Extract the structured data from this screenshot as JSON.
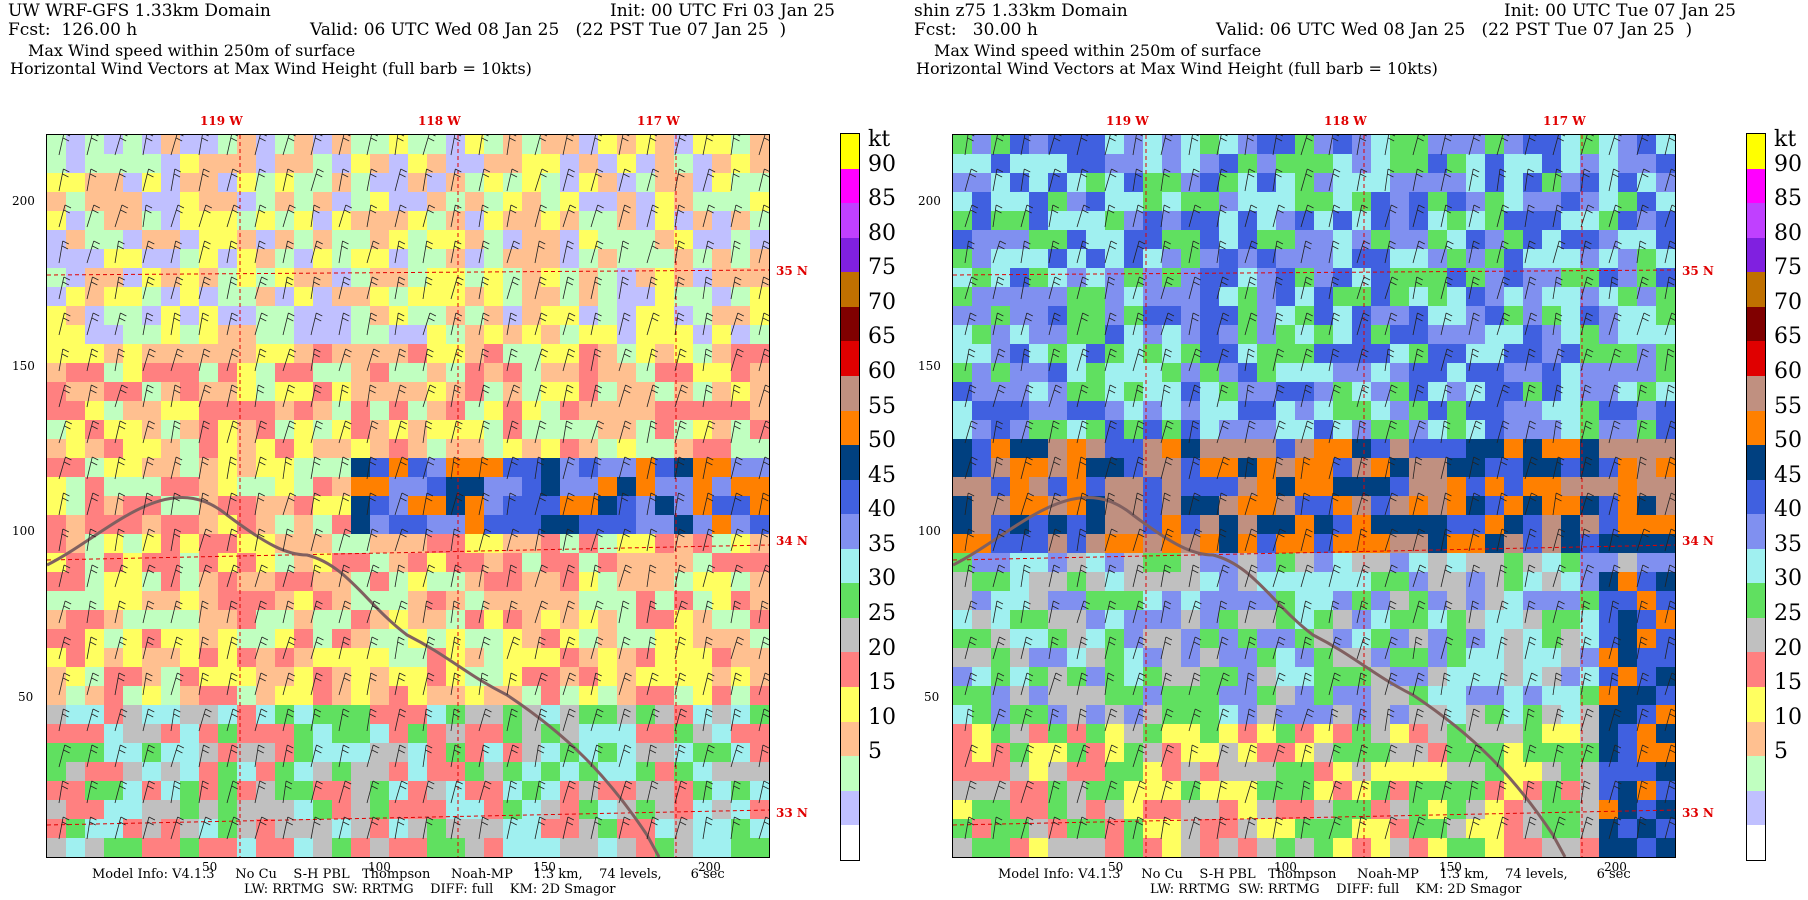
{
  "panels": [
    {
      "title_line1": "UW WRF-GFS 1.33km Domain",
      "init": "Init: 00 UTC Fri 03 Jan 25",
      "fcst": "Fcst:  126.00 h",
      "valid": "Valid: 06 UTC Wed 08 Jan 25   (22 PST Tue 07 Jan 25  )",
      "field": "Max Wind speed within 250m of surface",
      "vectors": "Horizontal Wind Vectors at Max Wind Height (full barb = 10kts)",
      "model_info": "Model Info: V4.1.3     No Cu    S-H PBL   Thompson     Noah-MP     1.3 km,    74 levels,       6 sec",
      "model_info2": "LW: RRTMG  SW: RRTMG    DIFF: full    KM: 2D Smagor"
    },
    {
      "title_line1": "shin z75 1.33km Domain",
      "init": "Init: 00 UTC Tue 07 Jan 25",
      "fcst": "Fcst:   30.00 h",
      "valid": "Valid: 06 UTC Wed 08 Jan 25   (22 PST Tue 07 Jan 25  )",
      "field": "Max Wind speed within 250m of surface",
      "vectors": "Horizontal Wind Vectors at Max Wind Height (full barb = 10kts)",
      "model_info": "Model Info: V4.1.3     No Cu    S-H PBL   Thompson     Noah-MP     1.3 km,    74 levels,       6 sec",
      "model_info2": "LW: RRTMG  SW: RRTMG    DIFF: full    KM: 2D Smagor"
    }
  ],
  "lon_labels": [
    "119 W",
    "118 W",
    "117 W"
  ],
  "lat_labels": [
    "35 N",
    "34 N",
    "33 N"
  ],
  "y_ticks": [
    "200",
    "150",
    "100",
    "50"
  ],
  "x_ticks": [
    "50",
    "100",
    "150",
    "200"
  ],
  "colorbar": {
    "unit": "kt",
    "levels": [
      "90",
      "85",
      "80",
      "75",
      "70",
      "65",
      "60",
      "55",
      "50",
      "45",
      "40",
      "35",
      "30",
      "25",
      "20",
      "15",
      "10",
      "5"
    ],
    "colors": [
      "#ffff00",
      "#ff00ff",
      "#c040ff",
      "#8020e0",
      "#c07000",
      "#800000",
      "#e00000",
      "#c09080",
      "#ff8000",
      "#004080",
      "#4060e0",
      "#8090f0",
      "#a0f0f0",
      "#60e060",
      "#c0c0c0",
      "#ff8080",
      "#ffff60",
      "#ffc090",
      "#c0ffc0",
      "#c0c0ff",
      "#ffffff"
    ]
  }
}
